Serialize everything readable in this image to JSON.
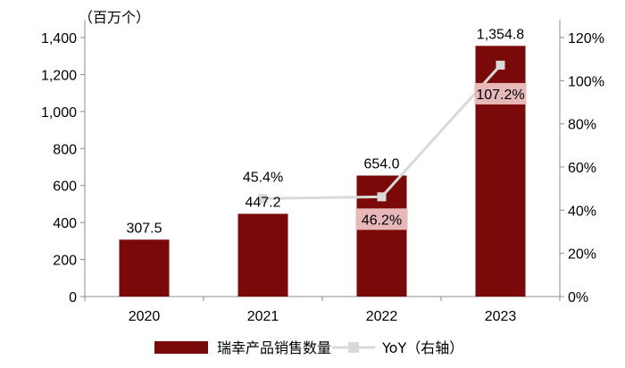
{
  "chart_data": {
    "type": "bar+line",
    "unit_label": "（百万个）",
    "categories": [
      "2020",
      "2021",
      "2022",
      "2023"
    ],
    "bar_series": {
      "name": "瑞幸产品销售数量",
      "values": [
        307.5,
        447.2,
        654.0,
        1354.8
      ],
      "labels": [
        "307.5",
        "447.2",
        "654.0",
        "1,354.8"
      ],
      "color": "#7a0a0a"
    },
    "line_series": {
      "name": "YoY（右轴）",
      "values": [
        null,
        45.4,
        46.2,
        107.2
      ],
      "labels": [
        null,
        "45.4%",
        "46.2%",
        "107.2%"
      ],
      "color": "#d9d9d9"
    },
    "y_left": {
      "min": 0,
      "max": 1400,
      "ticks": [
        "0",
        "200",
        "400",
        "600",
        "800",
        "1,000",
        "1,200",
        "1,400"
      ]
    },
    "y_right": {
      "min": 0,
      "max": 120,
      "ticks": [
        "0%",
        "20%",
        "40%",
        "60%",
        "80%",
        "100%",
        "120%"
      ]
    },
    "grid": false,
    "legend_position": "bottom"
  }
}
